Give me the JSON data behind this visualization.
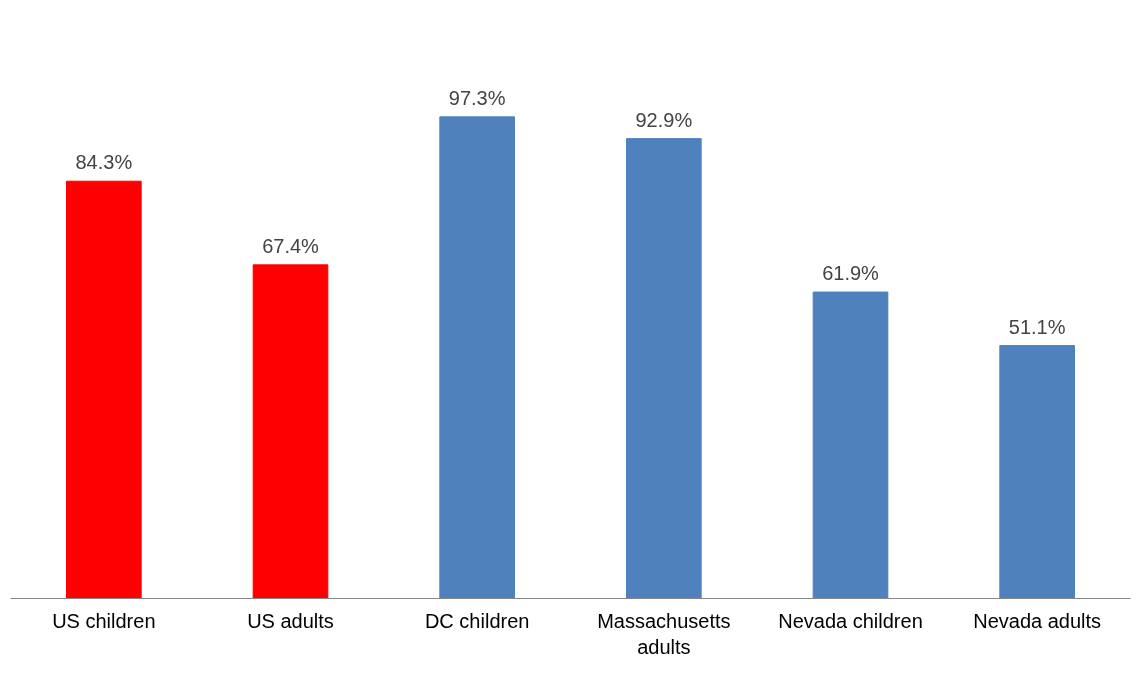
{
  "chart_data": {
    "type": "bar",
    "categories": [
      "US children",
      "US adults",
      "DC children",
      "Massachusetts adults",
      "Nevada children",
      "Nevada adults"
    ],
    "values": [
      84.3,
      67.4,
      97.3,
      92.9,
      61.9,
      51.1
    ],
    "colors": [
      "#ff0000",
      "#ff0000",
      "#4f81bd",
      "#4f81bd",
      "#4f81bd",
      "#4f81bd"
    ],
    "value_labels": [
      "84.3%",
      "67.4%",
      "97.3%",
      "92.9%",
      "61.9%",
      "51.1%"
    ],
    "grid": false
  }
}
